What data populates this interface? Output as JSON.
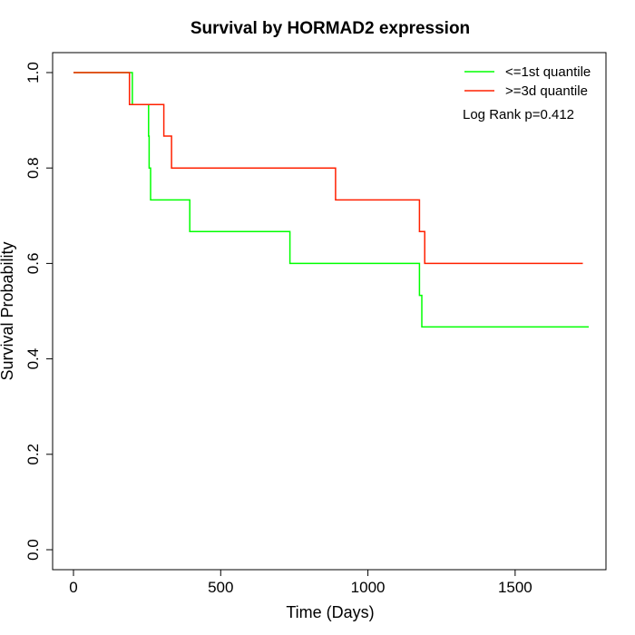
{
  "chart_data": {
    "type": "line",
    "step": true,
    "title": "Survival by HORMAD2 expression",
    "xlabel": "Time (Days)",
    "ylabel": "Survival Probability",
    "xlim": [
      0,
      1750
    ],
    "ylim": [
      0,
      1.0
    ],
    "xticks": [
      "0",
      "500",
      "1000",
      "1500"
    ],
    "xtick_values": [
      0,
      500,
      1000,
      1500
    ],
    "yticks": [
      "0.0",
      "0.2",
      "0.4",
      "0.6",
      "0.8",
      "1.0"
    ],
    "ytick_values": [
      0,
      0.2,
      0.4,
      0.6,
      0.8,
      1.0
    ],
    "grid": false,
    "legend_position": "top-right",
    "annotation": "Log Rank p=0.412",
    "series": [
      {
        "name": "<=1st quantile",
        "color": "#00ff00",
        "points": [
          [
            0,
            1.0
          ],
          [
            200,
            1.0
          ],
          [
            200,
            0.933
          ],
          [
            255,
            0.933
          ],
          [
            255,
            0.867
          ],
          [
            257,
            0.867
          ],
          [
            257,
            0.8
          ],
          [
            262,
            0.8
          ],
          [
            262,
            0.733
          ],
          [
            395,
            0.733
          ],
          [
            395,
            0.667
          ],
          [
            735,
            0.667
          ],
          [
            735,
            0.6
          ],
          [
            1175,
            0.6
          ],
          [
            1175,
            0.533
          ],
          [
            1183,
            0.533
          ],
          [
            1183,
            0.467
          ],
          [
            1750,
            0.467
          ]
        ]
      },
      {
        "name": ">=3d quantile",
        "color": "#ff2000",
        "points": [
          [
            0,
            1.0
          ],
          [
            190,
            1.0
          ],
          [
            190,
            0.933
          ],
          [
            307,
            0.933
          ],
          [
            307,
            0.867
          ],
          [
            333,
            0.867
          ],
          [
            333,
            0.8
          ],
          [
            890,
            0.8
          ],
          [
            890,
            0.733
          ],
          [
            1175,
            0.733
          ],
          [
            1175,
            0.667
          ],
          [
            1193,
            0.667
          ],
          [
            1193,
            0.6
          ],
          [
            1730,
            0.6
          ]
        ]
      }
    ]
  }
}
